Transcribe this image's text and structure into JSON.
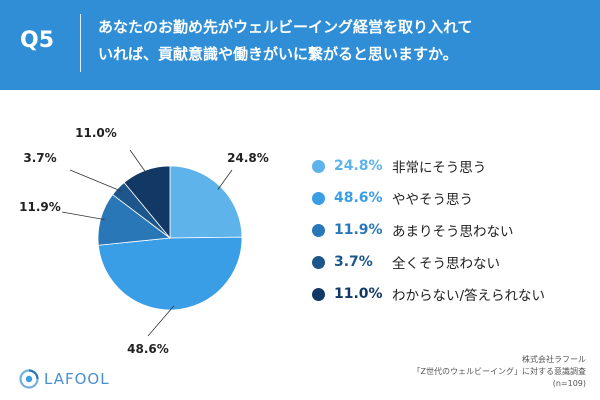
{
  "header": {
    "q_label": "Q5",
    "question_lines": [
      "あなたのお勤め先がウェルビーイング経営を取り入れて",
      "いれば、貢献意識や働きがいに繋がると思いますか。"
    ]
  },
  "colors": {
    "header_bg": "#2f8ed6",
    "header_text": "#ffffff",
    "slice_colors": [
      "#5db3ea",
      "#3a9ee6",
      "#2a77b8",
      "#1d568a",
      "#123866"
    ]
  },
  "chart_data": {
    "type": "pie",
    "title": "",
    "categories": [
      "非常にそう思う",
      "ややそう思う",
      "あまりそう思わない",
      "全くそう思わない",
      "わからない/答えられない"
    ],
    "values": [
      24.8,
      48.6,
      11.9,
      3.7,
      11.0
    ],
    "value_labels": [
      "24.8%",
      "48.6%",
      "11.9%",
      "3.7%",
      "11.0%"
    ],
    "start_angle_deg": 0,
    "direction": "clockwise",
    "legend_position": "right"
  },
  "footer": {
    "logo_text": "LAFOOL",
    "source_lines": [
      "株式会社ラフール",
      "「Z世代のウェルビーイング」に対する意識調査",
      "(n=109)"
    ]
  }
}
